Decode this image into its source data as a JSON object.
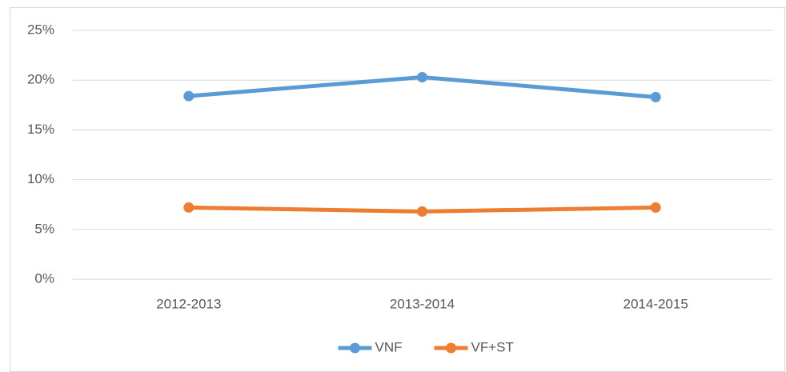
{
  "chart_data": {
    "type": "line",
    "categories": [
      "2012-2013",
      "2013-2014",
      "2014-2015"
    ],
    "series": [
      {
        "name": "VNF",
        "color": "#5b9bd5",
        "values": [
          18.4,
          20.3,
          18.3
        ]
      },
      {
        "name": "VF+ST",
        "color": "#ed7d31",
        "values": [
          7.2,
          6.8,
          7.2
        ]
      }
    ],
    "ylim": [
      0,
      25
    ],
    "yticks": [
      {
        "value": 0,
        "label": "0%"
      },
      {
        "value": 5,
        "label": "5%"
      },
      {
        "value": 10,
        "label": "10%"
      },
      {
        "value": 15,
        "label": "15%"
      },
      {
        "value": 20,
        "label": "20%"
      },
      {
        "value": 25,
        "label": "25%"
      }
    ],
    "grid": true,
    "legend": "bottom"
  }
}
